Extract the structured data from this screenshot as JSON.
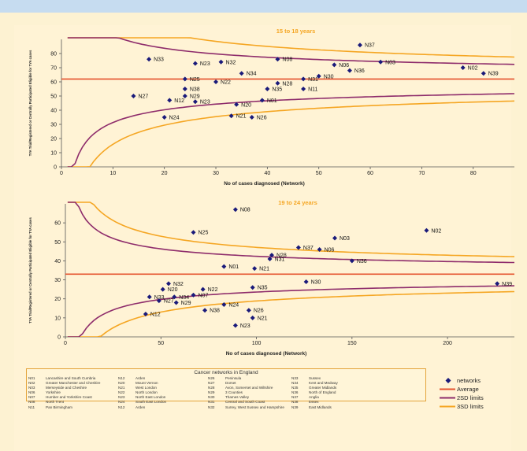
{
  "colors": {
    "marker": "#1a1a7a",
    "average": "#e5532e",
    "limit2": "#8e2c6b",
    "limit3": "#f5a623",
    "title": "#f5a623"
  },
  "chart_data": [
    {
      "type": "scatter",
      "title": "15 to 18 years",
      "xlabel": "No of cases diagnosed (Network)",
      "ylabel": "TYA Trial/Registered or Centrally Participated Eligible for TYA cases",
      "xlim": [
        0,
        88
      ],
      "ylim": [
        0,
        90
      ],
      "xticks": [
        0,
        10,
        20,
        30,
        40,
        50,
        60,
        70,
        80
      ],
      "yticks": [
        0,
        10,
        20,
        30,
        40,
        50,
        60,
        70,
        80
      ],
      "average": 62,
      "points": [
        {
          "label": "N37",
          "x": 58,
          "y": 86
        },
        {
          "label": "N33",
          "x": 17,
          "y": 76
        },
        {
          "label": "N08",
          "x": 42,
          "y": 76
        },
        {
          "label": "N23",
          "x": 26,
          "y": 73
        },
        {
          "label": "N32",
          "x": 31,
          "y": 74
        },
        {
          "label": "N03",
          "x": 62,
          "y": 74
        },
        {
          "label": "N06",
          "x": 53,
          "y": 72
        },
        {
          "label": "N02",
          "x": 78,
          "y": 70
        },
        {
          "label": "N36",
          "x": 56,
          "y": 68
        },
        {
          "label": "N34",
          "x": 35,
          "y": 66
        },
        {
          "label": "N39",
          "x": 82,
          "y": 66
        },
        {
          "label": "N30",
          "x": 50,
          "y": 64
        },
        {
          "label": "N25",
          "x": 24,
          "y": 62
        },
        {
          "label": "N31",
          "x": 47,
          "y": 62
        },
        {
          "label": "N22",
          "x": 30,
          "y": 60
        },
        {
          "label": "N28",
          "x": 42,
          "y": 59
        },
        {
          "label": "N38",
          "x": 24,
          "y": 55
        },
        {
          "label": "N35",
          "x": 40,
          "y": 55
        },
        {
          "label": "N11",
          "x": 47,
          "y": 55
        },
        {
          "label": "N27",
          "x": 14,
          "y": 50
        },
        {
          "label": "N29",
          "x": 24,
          "y": 50
        },
        {
          "label": "N12",
          "x": 21,
          "y": 47
        },
        {
          "label": "N23",
          "x": 26,
          "y": 46
        },
        {
          "label": "N01",
          "x": 39,
          "y": 47
        },
        {
          "label": "N20",
          "x": 34,
          "y": 44
        },
        {
          "label": "N24",
          "x": 20,
          "y": 35
        },
        {
          "label": "N21",
          "x": 33,
          "y": 36
        },
        {
          "label": "N26",
          "x": 37,
          "y": 35
        }
      ]
    },
    {
      "type": "scatter",
      "title": "19 to 24 years",
      "xlabel": "No of cases diagnosed (Network)",
      "ylabel": "TYA Trial/Registered or Centrally Participated Eligible for TYA cases",
      "xlim": [
        0,
        235
      ],
      "ylim": [
        0,
        70
      ],
      "xticks": [
        0,
        50,
        100,
        150,
        200
      ],
      "yticks": [
        0,
        10,
        20,
        30,
        40,
        50,
        60
      ],
      "average": 33,
      "points": [
        {
          "label": "N08",
          "x": 89,
          "y": 67
        },
        {
          "label": "N25",
          "x": 67,
          "y": 55
        },
        {
          "label": "N02",
          "x": 189,
          "y": 56
        },
        {
          "label": "N03",
          "x": 141,
          "y": 52
        },
        {
          "label": "N37",
          "x": 122,
          "y": 47
        },
        {
          "label": "N06",
          "x": 133,
          "y": 46
        },
        {
          "label": "N28",
          "x": 108,
          "y": 43
        },
        {
          "label": "N31",
          "x": 107,
          "y": 41
        },
        {
          "label": "N36",
          "x": 150,
          "y": 40
        },
        {
          "label": "N01",
          "x": 83,
          "y": 37
        },
        {
          "label": "N21",
          "x": 99,
          "y": 36
        },
        {
          "label": "N39",
          "x": 226,
          "y": 28
        },
        {
          "label": "N30",
          "x": 126,
          "y": 29
        },
        {
          "label": "N32",
          "x": 54,
          "y": 28
        },
        {
          "label": "N20",
          "x": 51,
          "y": 25
        },
        {
          "label": "N22",
          "x": 72,
          "y": 25
        },
        {
          "label": "N35",
          "x": 98,
          "y": 26
        },
        {
          "label": "N07",
          "x": 67,
          "y": 22
        },
        {
          "label": "N33",
          "x": 44,
          "y": 21
        },
        {
          "label": "N34",
          "x": 57,
          "y": 21
        },
        {
          "label": "N27",
          "x": 49,
          "y": 19
        },
        {
          "label": "N29",
          "x": 58,
          "y": 18
        },
        {
          "label": "N24",
          "x": 83,
          "y": 17
        },
        {
          "label": "N38",
          "x": 73,
          "y": 14
        },
        {
          "label": "N26",
          "x": 96,
          "y": 14
        },
        {
          "label": "N12",
          "x": 42,
          "y": 12
        },
        {
          "label": "N21",
          "x": 98,
          "y": 10
        },
        {
          "label": "N23",
          "x": 89,
          "y": 6
        }
      ]
    }
  ],
  "networks_legend": {
    "title": "Cancer networks in England",
    "rows": [
      [
        "N01",
        "Lancashire and South Cumbria",
        "N12",
        "Arden",
        "N26",
        "Peninsula",
        "N33",
        "Sussex"
      ],
      [
        "N02",
        "Greater Manchester and Cheshire",
        "N20",
        "Mount Vernon",
        "N27",
        "Dorset",
        "N34",
        "Kent and Medway"
      ],
      [
        "N03",
        "Merseyside and Cheshire",
        "N21",
        "West London",
        "N28",
        "Avon, Somerset and Wiltshire",
        "N35",
        "Greater Midlands"
      ],
      [
        "N06",
        "Yorkshire",
        "N22",
        "North London",
        "N29",
        "3 Counties",
        "N36",
        "North of England"
      ],
      [
        "N07",
        "Humber and Yorkshire Coast",
        "N23",
        "North East London",
        "N30",
        "Thames Valley",
        "N37",
        "Anglia"
      ],
      [
        "N08",
        "North Trent",
        "N24",
        "South East London",
        "N31",
        "Central and South Coast",
        "N38",
        "Essex"
      ],
      [
        "N11",
        "Pan Birmingham",
        "N12",
        "Arden",
        "N32",
        "Surrey, West Sussex and Hampshire",
        "N39",
        "East Midlands"
      ]
    ]
  },
  "key": {
    "networks": "networks",
    "average": "Average",
    "limit2": "2SD limits",
    "limit3": "3SD limits"
  }
}
